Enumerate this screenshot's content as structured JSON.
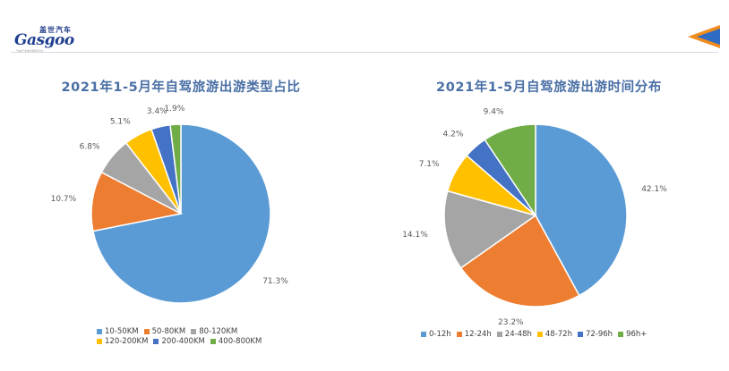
{
  "brand": {
    "logo_cn": "盖世汽车",
    "logo_en": "Gasgoo",
    "tagline": "汽车产业信息服务平台"
  },
  "chart_data": [
    {
      "type": "pie",
      "title": "2021年1-5月年自驾旅游出游类型占比",
      "categories": [
        "10-50KM",
        "50-80KM",
        "80-120KM",
        "120-200KM",
        "200-400KM",
        "400-800KM"
      ],
      "values": [
        71.3,
        10.7,
        6.8,
        5.1,
        3.4,
        1.9
      ],
      "labels": [
        "71.3%",
        "10.7%",
        "6.8%",
        "5.1%",
        "3.4%",
        "1.9%"
      ],
      "colors": [
        "#5b9bd5",
        "#ed7d31",
        "#a5a5a5",
        "#ffc000",
        "#4472c4",
        "#70ad47"
      ],
      "legend_position": "bottom"
    },
    {
      "type": "pie",
      "title": "2021年1-5月自驾旅游出游时间分布",
      "categories": [
        "0-12h",
        "12-24h",
        "24-48h",
        "48-72h",
        "72-96h",
        "96h+"
      ],
      "values": [
        42.1,
        23.2,
        14.1,
        7.1,
        4.2,
        9.4
      ],
      "labels": [
        "42.1%",
        "23.2%",
        "14.1%",
        "7.1%",
        "4.2%",
        "9.4%"
      ],
      "colors": [
        "#5b9bd5",
        "#ed7d31",
        "#a5a5a5",
        "#ffc000",
        "#4472c4",
        "#70ad47"
      ],
      "legend_position": "bottom"
    }
  ]
}
